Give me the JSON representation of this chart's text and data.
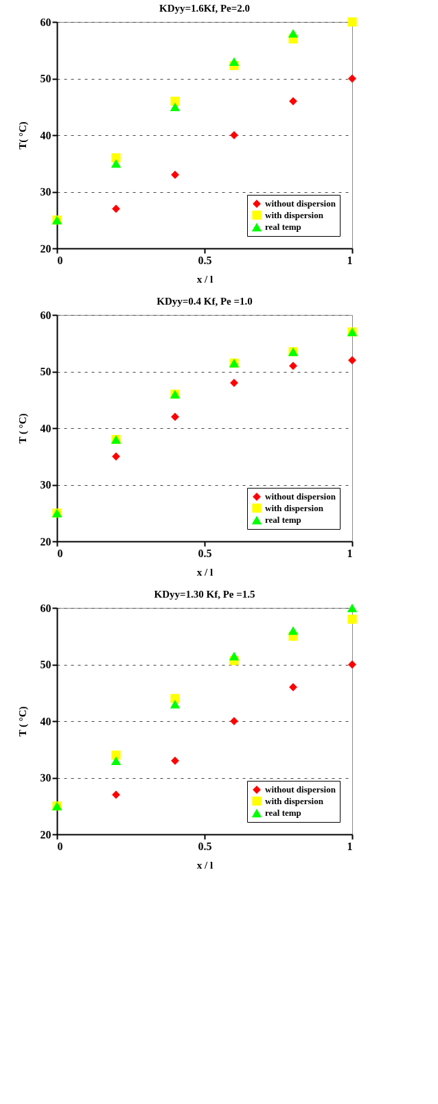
{
  "chart_data": [
    {
      "type": "scatter",
      "title": "KDyy=1.6Kf, Pe=2.0",
      "xlabel": "x / l",
      "ylabel": "T( °C)",
      "x": [
        0,
        0.2,
        0.4,
        0.6,
        0.8,
        1
      ],
      "xlim": [
        0,
        1
      ],
      "xticks": [
        0,
        0.5,
        1
      ],
      "ylim": [
        20,
        60
      ],
      "yticks": [
        20,
        30,
        40,
        50,
        60
      ],
      "grid": "y",
      "legend": "bottom right",
      "series": [
        {
          "name": "without dispersion",
          "color": "#ff0000",
          "marker": "diamond",
          "values": [
            null,
            27,
            33,
            40,
            46,
            50
          ]
        },
        {
          "name": "with dispersion",
          "color": "#ffff00",
          "marker": "square",
          "values": [
            25,
            36,
            46,
            52.3,
            57,
            60
          ]
        },
        {
          "name": " real temp",
          "color": "#00ff00",
          "marker": "triangle",
          "values": [
            25,
            35,
            45,
            53,
            58,
            null
          ]
        }
      ]
    },
    {
      "type": "scatter",
      "title": "KDyy=0.4 Kf, Pe =1.0",
      "xlabel": "x / l",
      "ylabel": "T ( °C)",
      "x": [
        0,
        0.2,
        0.4,
        0.6,
        0.8,
        1
      ],
      "xlim": [
        0,
        1
      ],
      "xticks": [
        0,
        0.5,
        1
      ],
      "ylim": [
        20,
        60
      ],
      "yticks": [
        20,
        30,
        40,
        50,
        60
      ],
      "grid": "y",
      "legend": "bottom right",
      "series": [
        {
          "name": "without dispersion",
          "color": "#ff0000",
          "marker": "diamond",
          "values": [
            null,
            35,
            42,
            48,
            51,
            52
          ]
        },
        {
          "name": "with dispersion",
          "color": "#ffff00",
          "marker": "square",
          "values": [
            25,
            38,
            46,
            51.5,
            53.5,
            57
          ]
        },
        {
          "name": " real temp",
          "color": "#00ff00",
          "marker": "triangle",
          "values": [
            25,
            38,
            46,
            51.5,
            53.5,
            57
          ]
        }
      ]
    },
    {
      "type": "scatter",
      "title": "KDyy=1.30 Kf, Pe =1.5",
      "xlabel": "x / l",
      "ylabel": "T ( °C)",
      "x": [
        0,
        0.2,
        0.4,
        0.6,
        0.8,
        1
      ],
      "xlim": [
        0,
        1
      ],
      "xticks": [
        0,
        0.5,
        1
      ],
      "ylim": [
        20,
        60
      ],
      "yticks": [
        20,
        30,
        40,
        50,
        60
      ],
      "grid": "y",
      "legend": "bottom right",
      "series": [
        {
          "name": "without dispersion",
          "color": "#ff0000",
          "marker": "diamond",
          "values": [
            null,
            27,
            33,
            40,
            46,
            50
          ]
        },
        {
          "name": "with dispersion",
          "color": "#ffff00",
          "marker": "square",
          "values": [
            25,
            34,
            44,
            50.7,
            55,
            58
          ]
        },
        {
          "name": " real temp",
          "color": "#00ff00",
          "marker": "triangle",
          "values": [
            25,
            33,
            43,
            51.5,
            56,
            60
          ]
        }
      ]
    }
  ]
}
